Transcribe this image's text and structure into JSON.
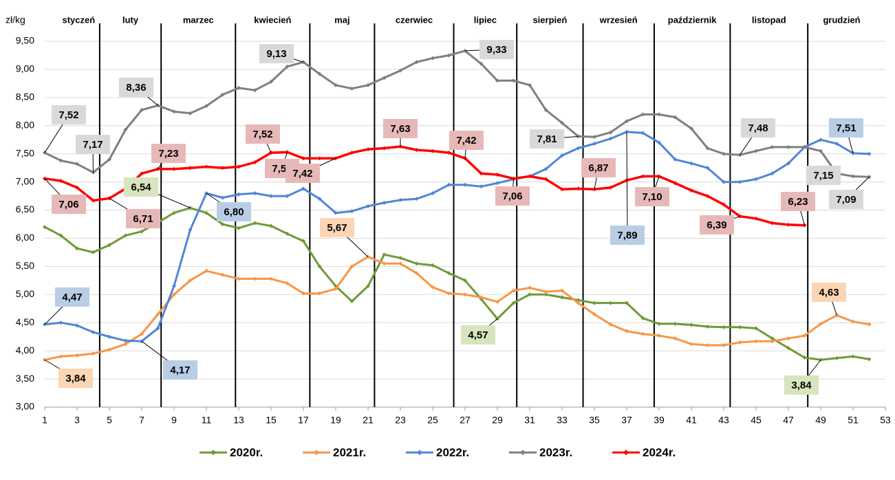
{
  "chart_data": {
    "type": "line",
    "y_label": "zł/kg",
    "months": [
      "styczeń",
      "luty",
      "marzec",
      "kwiecień",
      "maj",
      "czerwiec",
      "lipiec",
      "sierpień",
      "wrzesień",
      "październik",
      "listopad",
      "grudzień"
    ],
    "x": [
      1,
      2,
      3,
      4,
      5,
      6,
      7,
      8,
      9,
      10,
      11,
      12,
      13,
      14,
      15,
      16,
      17,
      18,
      19,
      20,
      21,
      22,
      23,
      24,
      25,
      26,
      27,
      28,
      29,
      30,
      31,
      32,
      33,
      34,
      35,
      36,
      37,
      38,
      39,
      40,
      41,
      42,
      43,
      44,
      45,
      46,
      47,
      48,
      49,
      50,
      51,
      52
    ],
    "xlim": [
      1,
      53
    ],
    "xticks": [
      1,
      3,
      5,
      7,
      9,
      11,
      13,
      15,
      17,
      19,
      21,
      23,
      25,
      27,
      29,
      31,
      33,
      35,
      37,
      39,
      41,
      43,
      45,
      47,
      49,
      51,
      53
    ],
    "ylim": [
      3,
      9.5
    ],
    "yticks": [
      {
        "value": 3,
        "label": "3,00"
      },
      {
        "value": 3.5,
        "label": "3,50"
      },
      {
        "value": 4,
        "label": "4,00"
      },
      {
        "value": 4.5,
        "label": "4,50"
      },
      {
        "value": 5,
        "label": "5,00"
      },
      {
        "value": 5.5,
        "label": "5,50"
      },
      {
        "value": 6,
        "label": "6,00"
      },
      {
        "value": 6.5,
        "label": "6,50"
      },
      {
        "value": 7,
        "label": "7,00"
      },
      {
        "value": 7.5,
        "label": "7,50"
      },
      {
        "value": 8,
        "label": "8,00"
      },
      {
        "value": 8.5,
        "label": "8,50"
      },
      {
        "value": 9,
        "label": "9,00"
      },
      {
        "value": 9.5,
        "label": "9,50"
      }
    ],
    "grid": true,
    "series": [
      {
        "name": "2020r.",
        "color": "#6f9a37",
        "values": [
          6.2,
          6.05,
          5.82,
          5.75,
          5.88,
          6.05,
          6.12,
          6.28,
          6.45,
          6.54,
          6.45,
          6.25,
          6.18,
          6.27,
          6.22,
          6.08,
          5.95,
          5.5,
          5.15,
          4.88,
          5.15,
          5.71,
          5.65,
          5.55,
          5.52,
          5.38,
          5.25,
          4.92,
          4.57,
          4.85,
          5.0,
          5.0,
          4.95,
          4.9,
          4.85,
          4.85,
          4.85,
          4.58,
          4.48,
          4.48,
          4.46,
          4.43,
          4.42,
          4.42,
          4.4,
          4.22,
          4.05,
          3.88,
          3.84,
          3.87,
          3.9,
          3.85
        ],
        "value_labels": [
          null,
          null,
          null,
          null,
          null,
          null,
          null,
          null,
          null,
          "6,54",
          null,
          null,
          null,
          null,
          null,
          null,
          null,
          null,
          null,
          null,
          null,
          null,
          null,
          null,
          null,
          null,
          null,
          null,
          "4,57",
          null,
          null,
          null,
          null,
          null,
          null,
          null,
          null,
          null,
          null,
          null,
          null,
          null,
          null,
          null,
          null,
          null,
          null,
          null,
          "3,84",
          null,
          null,
          null
        ]
      },
      {
        "name": "2021r.",
        "color": "#f79646",
        "values": [
          3.84,
          3.9,
          3.92,
          3.95,
          4.02,
          4.12,
          4.3,
          4.65,
          5.0,
          5.25,
          5.42,
          5.35,
          5.28,
          5.28,
          5.28,
          5.2,
          5.02,
          5.02,
          5.1,
          5.5,
          5.67,
          5.55,
          5.55,
          5.38,
          5.13,
          5.02,
          5.0,
          4.95,
          4.87,
          5.07,
          5.12,
          5.05,
          5.07,
          4.85,
          4.65,
          4.47,
          4.35,
          4.3,
          4.27,
          4.22,
          4.12,
          4.1,
          4.1,
          4.15,
          4.17,
          4.17,
          4.22,
          4.27,
          4.48,
          4.63,
          4.52,
          4.47
        ],
        "value_labels": [
          "3,84",
          null,
          null,
          null,
          null,
          null,
          null,
          null,
          null,
          null,
          null,
          null,
          null,
          null,
          null,
          null,
          null,
          null,
          null,
          null,
          "5,67",
          null,
          null,
          null,
          null,
          null,
          null,
          null,
          null,
          null,
          null,
          null,
          null,
          null,
          null,
          null,
          null,
          null,
          null,
          null,
          null,
          null,
          null,
          null,
          null,
          null,
          null,
          null,
          null,
          "4,63",
          null,
          null
        ]
      },
      {
        "name": "2022r.",
        "color": "#4f86d6",
        "values": [
          4.47,
          4.5,
          4.45,
          4.33,
          4.25,
          4.18,
          4.17,
          4.4,
          5.15,
          6.15,
          6.8,
          6.72,
          6.78,
          6.8,
          6.75,
          6.75,
          6.88,
          6.7,
          6.45,
          6.48,
          6.57,
          6.63,
          6.68,
          6.7,
          6.8,
          6.95,
          6.95,
          6.92,
          6.98,
          7.05,
          7.1,
          7.23,
          7.47,
          7.6,
          7.68,
          7.77,
          7.89,
          7.87,
          7.7,
          7.4,
          7.33,
          7.25,
          7.0,
          7.0,
          7.05,
          7.15,
          7.33,
          7.62,
          7.75,
          7.68,
          7.51,
          7.5
        ],
        "value_labels": [
          "4,47",
          null,
          null,
          null,
          null,
          null,
          "4,17",
          null,
          null,
          null,
          "6,80",
          null,
          null,
          null,
          null,
          null,
          null,
          null,
          null,
          null,
          null,
          null,
          null,
          null,
          null,
          null,
          null,
          null,
          null,
          null,
          null,
          null,
          null,
          null,
          null,
          null,
          "7,89",
          null,
          null,
          null,
          null,
          null,
          null,
          null,
          null,
          null,
          null,
          null,
          null,
          null,
          "7,51",
          null
        ]
      },
      {
        "name": "2023r.",
        "color": "#7f7f7f",
        "values": [
          7.52,
          7.38,
          7.32,
          7.17,
          7.4,
          7.93,
          8.28,
          8.36,
          8.25,
          8.22,
          8.35,
          8.55,
          8.67,
          8.63,
          8.78,
          9.05,
          9.13,
          8.92,
          8.72,
          8.66,
          8.72,
          8.85,
          8.98,
          9.13,
          9.2,
          9.25,
          9.33,
          9.1,
          8.8,
          8.8,
          8.72,
          8.28,
          8.05,
          7.81,
          7.8,
          7.88,
          8.08,
          8.2,
          8.2,
          8.15,
          7.95,
          7.6,
          7.5,
          7.48,
          7.55,
          7.62,
          7.62,
          7.62,
          7.55,
          7.15,
          7.1,
          7.09
        ],
        "value_labels": [
          "7,52",
          null,
          null,
          "7,17",
          null,
          null,
          null,
          "8,36",
          null,
          null,
          null,
          null,
          null,
          null,
          null,
          null,
          "9,13",
          null,
          null,
          null,
          null,
          null,
          null,
          null,
          null,
          null,
          "9,33",
          null,
          null,
          null,
          null,
          null,
          null,
          "7,81",
          null,
          null,
          null,
          null,
          null,
          null,
          null,
          null,
          null,
          "7,48",
          null,
          null,
          null,
          null,
          null,
          "7,15",
          null,
          "7,09"
        ]
      },
      {
        "name": "2024r.",
        "color": "#ff0000",
        "values": [
          7.06,
          7.02,
          6.9,
          6.67,
          6.71,
          6.88,
          7.15,
          7.23,
          7.23,
          7.25,
          7.27,
          7.25,
          7.27,
          7.35,
          7.52,
          7.53,
          7.42,
          7.42,
          7.42,
          7.52,
          7.58,
          7.6,
          7.63,
          7.57,
          7.55,
          7.52,
          7.42,
          7.15,
          7.13,
          7.06,
          7.1,
          7.05,
          6.87,
          6.88,
          6.87,
          6.9,
          7.03,
          7.1,
          7.1,
          6.98,
          6.85,
          6.75,
          6.6,
          6.39,
          6.35,
          6.27,
          6.24,
          6.23,
          null,
          null,
          null,
          null
        ],
        "value_labels": [
          "7,06",
          null,
          null,
          null,
          "6,71",
          null,
          null,
          "7,23",
          null,
          null,
          null,
          null,
          null,
          null,
          "7,52",
          "7,53",
          null,
          null,
          "7,42",
          null,
          null,
          null,
          "7,63",
          null,
          null,
          null,
          "7,42",
          null,
          null,
          "7,06",
          null,
          null,
          null,
          null,
          "6,87",
          null,
          null,
          null,
          "7,10",
          null,
          null,
          null,
          null,
          "6,39",
          null,
          null,
          null,
          "6,23",
          null,
          null,
          null,
          null
        ]
      }
    ]
  }
}
